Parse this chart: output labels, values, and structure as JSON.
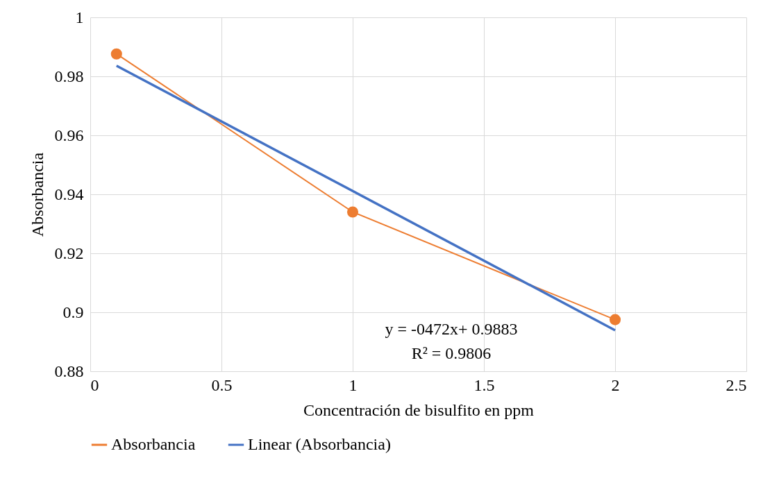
{
  "chart_data": {
    "type": "line",
    "xlabel": "Concentración de bisulfito en ppm",
    "ylabel": "Absorbancia",
    "x": [
      0.1,
      1,
      2
    ],
    "series": [
      {
        "name": "Absorbancia",
        "color": "#ed7d31",
        "values": [
          0.9876,
          0.934,
          0.8975
        ],
        "marker": "circle"
      },
      {
        "name": "Linear (Absorbancia)",
        "color": "#4472c4",
        "type": "line",
        "x": [
          0.1,
          2
        ],
        "values": [
          0.9836,
          0.8939
        ]
      }
    ],
    "xlim": [
      0,
      2.5
    ],
    "xticks": [
      0,
      0.5,
      1,
      1.5,
      2,
      2.5
    ],
    "ylim": [
      0.88,
      1
    ],
    "yticks": [
      0.88,
      0.9,
      0.92,
      0.94,
      0.96,
      0.98,
      1
    ],
    "grid": true,
    "legend": "bottom",
    "annotations": [
      "y = -0472x+ 0.9883",
      "R² = 0.9806"
    ]
  }
}
